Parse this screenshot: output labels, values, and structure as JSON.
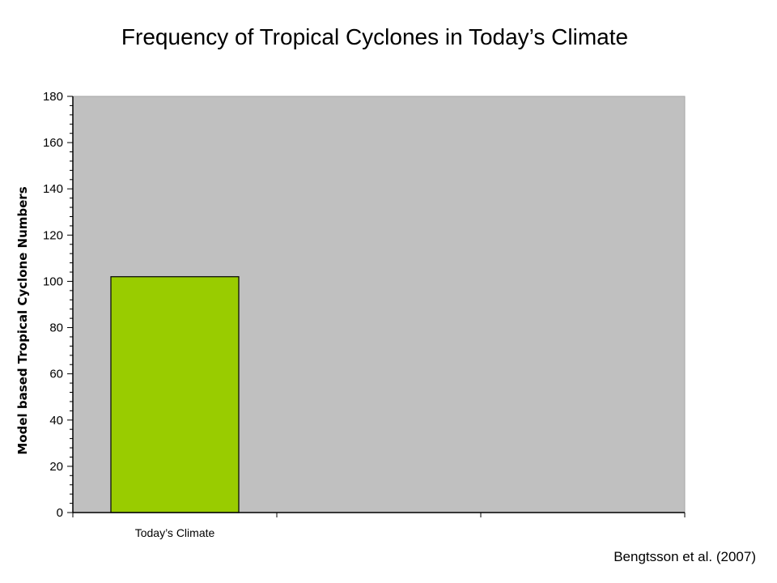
{
  "slide": {
    "title": "Frequency of Tropical Cyclones in Today’s Climate",
    "citation": "Bengtsson et al. (2007)"
  },
  "chart_data": {
    "type": "bar",
    "categories": [
      "Today’s Climate",
      "",
      ""
    ],
    "values": [
      102,
      null,
      null
    ],
    "title": "Frequency of Tropical Cyclones in Today’s Climate",
    "xlabel": "",
    "ylabel": "Model based Tropical Cyclone Numbers",
    "ylim": [
      0,
      180
    ],
    "yticks": [
      0,
      20,
      40,
      60,
      80,
      100,
      120,
      140,
      160,
      180
    ],
    "grid": false,
    "legend": "none",
    "colors": {
      "bar": "#99cc00",
      "plot_background": "#c0c0c0",
      "axis": "#000000"
    }
  }
}
